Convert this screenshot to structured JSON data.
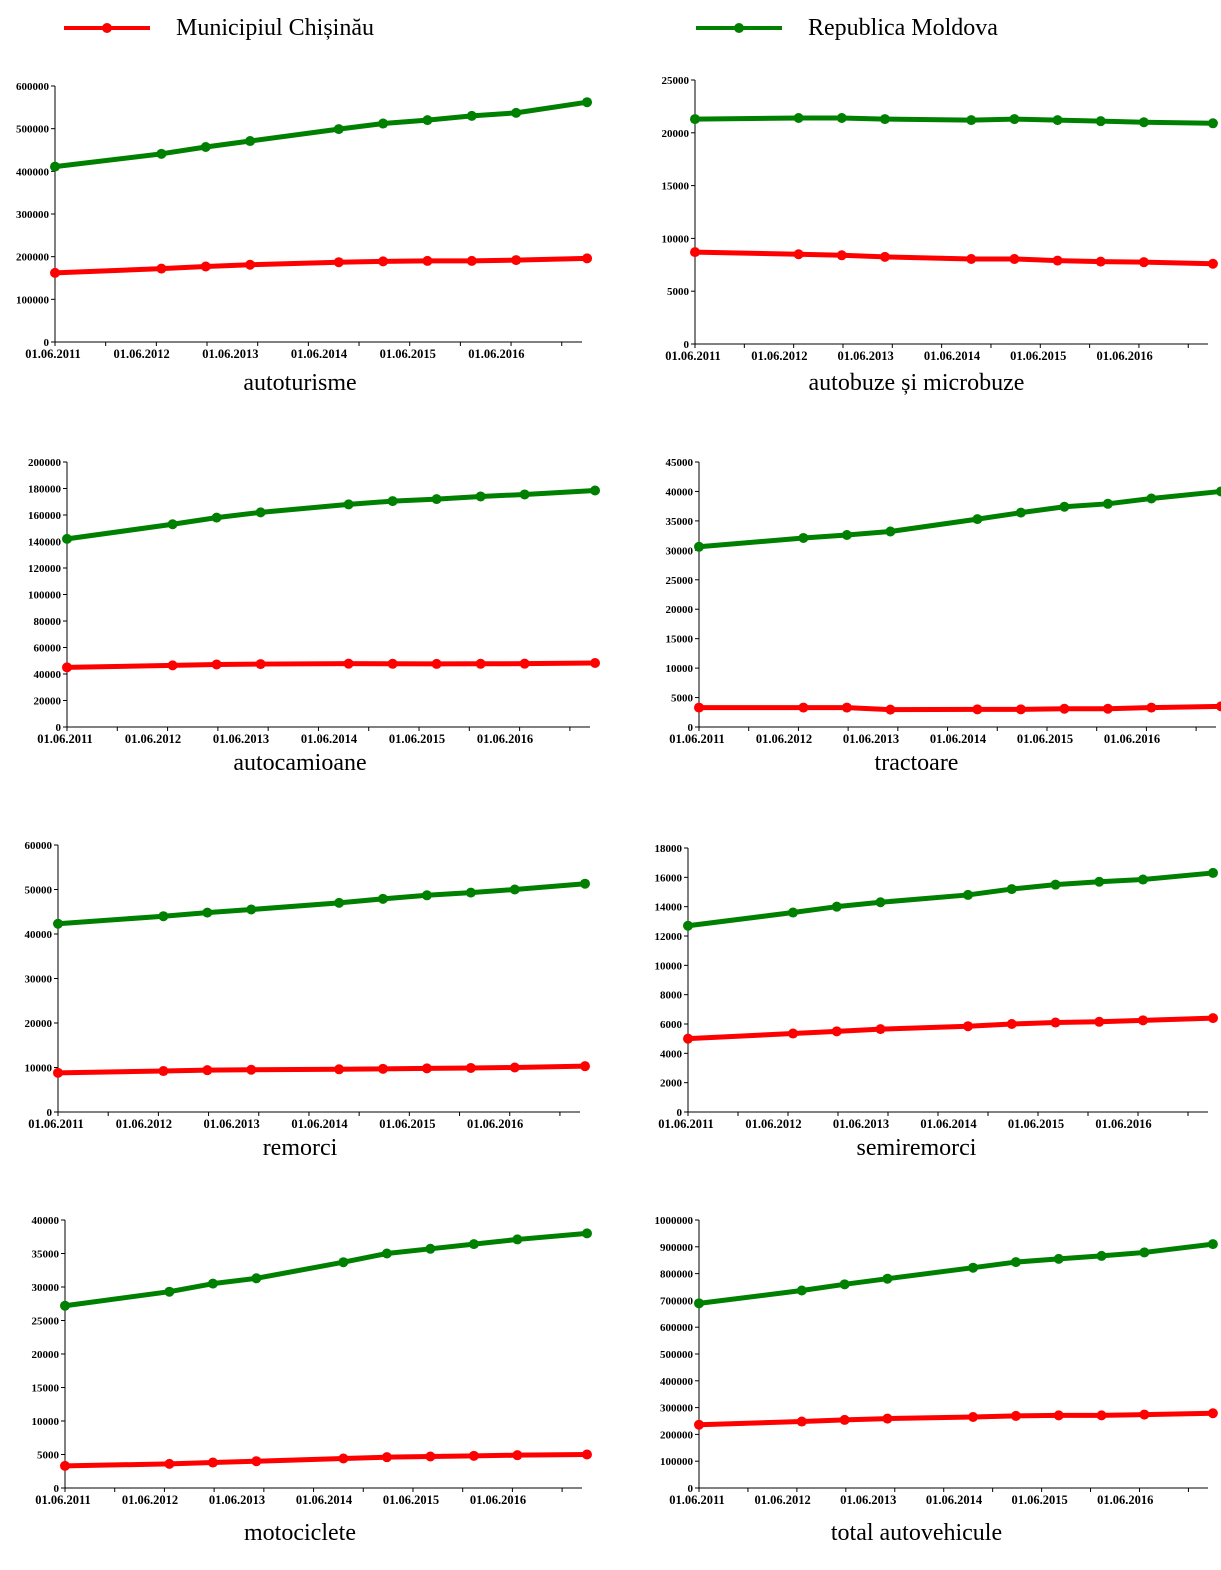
{
  "legend": {
    "items": [
      {
        "label": "Municipiul Chișinău",
        "color": "#ff0000"
      },
      {
        "label": "Republica Moldova",
        "color": "#008000"
      }
    ]
  },
  "colors": {
    "series_a": "#ff0000",
    "series_b": "#008000",
    "axis": "#000000"
  },
  "chart_data": [
    {
      "type": "line",
      "title": "autoturisme",
      "xlabel": "",
      "ylabel": "",
      "x_tick_labels": [
        "01.06.2011",
        "01.06.2012",
        "01.06.2013",
        "01.06.2014",
        "01.06.2015",
        "01.06.2016"
      ],
      "x_range": [
        0,
        10.4
      ],
      "x": [
        0,
        1.2,
        1.7,
        2.2,
        3.2,
        3.7,
        4.2,
        4.7,
        5.2,
        6
      ],
      "yticks": [
        0,
        100000,
        200000,
        300000,
        400000,
        500000,
        600000
      ],
      "ylim": [
        0,
        600000
      ],
      "series": [
        {
          "name": "Municipiul Chișinău",
          "values": [
            162000,
            172000,
            177000,
            181000,
            187000,
            189000,
            190000,
            190000,
            192000,
            196000
          ]
        },
        {
          "name": "Republica Moldova",
          "values": [
            411000,
            441000,
            457000,
            471000,
            499000,
            512000,
            520000,
            530000,
            537000,
            562000
          ]
        }
      ]
    },
    {
      "type": "line",
      "title": "autobuze și microbuze",
      "xlabel": "",
      "ylabel": "",
      "x_tick_labels": [
        "01.06.2011",
        "01.06.2012",
        "01.06.2013",
        "01.06.2014",
        "01.06.2015",
        "01.06.2016"
      ],
      "x_range": [
        0,
        10.4
      ],
      "x": [
        0,
        1.2,
        1.7,
        2.2,
        3.2,
        3.7,
        4.2,
        4.7,
        5.2,
        6
      ],
      "yticks": [
        0,
        5000,
        10000,
        15000,
        20000,
        25000
      ],
      "ylim": [
        0,
        25000
      ],
      "series": [
        {
          "name": "Municipiul Chișinău",
          "values": [
            8700,
            8500,
            8400,
            8250,
            8050,
            8050,
            7900,
            7800,
            7750,
            7600
          ]
        },
        {
          "name": "Republica Moldova",
          "values": [
            21300,
            21400,
            21400,
            21300,
            21200,
            21300,
            21200,
            21100,
            21000,
            20900
          ]
        }
      ]
    },
    {
      "type": "line",
      "title": "autocamioane",
      "xlabel": "",
      "ylabel": "",
      "x_tick_labels": [
        "01.06.2011",
        "01.06.2012",
        "01.06.2013",
        "01.06.2014",
        "01.06.2015",
        "01.06.2016"
      ],
      "x_range": [
        0,
        10.4
      ],
      "x": [
        0,
        1.2,
        1.7,
        2.2,
        3.2,
        3.7,
        4.2,
        4.7,
        5.2,
        6
      ],
      "yticks": [
        0,
        20000,
        40000,
        60000,
        80000,
        100000,
        120000,
        140000,
        160000,
        180000,
        200000
      ],
      "ylim": [
        0,
        200000
      ],
      "series": [
        {
          "name": "Municipiul Chișinău",
          "values": [
            45000,
            46500,
            47200,
            47500,
            47800,
            47700,
            47600,
            47700,
            47800,
            48300
          ]
        },
        {
          "name": "Republica Moldova",
          "values": [
            142000,
            153000,
            158000,
            162000,
            168000,
            170500,
            172000,
            174000,
            175500,
            178500
          ]
        }
      ]
    },
    {
      "type": "line",
      "title": "tractoare",
      "xlabel": "",
      "ylabel": "",
      "x_tick_labels": [
        "01.06.2011",
        "01.06.2012",
        "01.06.2013",
        "01.06.2014",
        "01.06.2015",
        "01.06.2016"
      ],
      "x_range": [
        0,
        10.4
      ],
      "x": [
        0,
        1.2,
        1.7,
        2.2,
        3.2,
        3.7,
        4.2,
        4.7,
        5.2,
        6
      ],
      "yticks": [
        0,
        5000,
        10000,
        15000,
        20000,
        25000,
        30000,
        35000,
        40000,
        45000
      ],
      "ylim": [
        0,
        45000
      ],
      "series": [
        {
          "name": "Municipiul Chișinău",
          "values": [
            3300,
            3300,
            3300,
            2950,
            3000,
            3000,
            3100,
            3100,
            3300,
            3500
          ]
        },
        {
          "name": "Republica Moldova",
          "values": [
            30600,
            32100,
            32600,
            33200,
            35300,
            36400,
            37400,
            37900,
            38800,
            40000
          ]
        }
      ]
    },
    {
      "type": "line",
      "title": "remorci",
      "xlabel": "",
      "ylabel": "",
      "x_tick_labels": [
        "01.06.2011",
        "01.06.2012",
        "01.06.2013",
        "01.06.2014",
        "01.06.2015",
        "01.06.2016"
      ],
      "x_range": [
        0,
        10.4
      ],
      "x": [
        0,
        1.2,
        1.7,
        2.2,
        3.2,
        3.7,
        4.2,
        4.7,
        5.2,
        6
      ],
      "yticks": [
        0,
        10000,
        20000,
        30000,
        40000,
        50000,
        60000
      ],
      "ylim": [
        0,
        60000
      ],
      "series": [
        {
          "name": "Municipiul Chișinău",
          "values": [
            8800,
            9200,
            9400,
            9500,
            9600,
            9700,
            9800,
            9900,
            10000,
            10300
          ]
        },
        {
          "name": "Republica Moldova",
          "values": [
            42300,
            44000,
            44800,
            45500,
            47000,
            47900,
            48700,
            49300,
            50000,
            51300
          ]
        }
      ]
    },
    {
      "type": "line",
      "title": "semiremorci",
      "xlabel": "",
      "ylabel": "",
      "x_tick_labels": [
        "01.06.2011",
        "01.06.2012",
        "01.06.2013",
        "01.06.2014",
        "01.06.2015",
        "01.06.2016"
      ],
      "x_range": [
        0,
        10.4
      ],
      "x": [
        0,
        1.2,
        1.7,
        2.2,
        3.2,
        3.7,
        4.2,
        4.7,
        5.2,
        6
      ],
      "yticks": [
        0,
        2000,
        4000,
        6000,
        8000,
        10000,
        12000,
        14000,
        16000,
        18000
      ],
      "ylim": [
        0,
        18000
      ],
      "series": [
        {
          "name": "Municipiul Chișinău",
          "values": [
            5000,
            5350,
            5500,
            5650,
            5850,
            6000,
            6100,
            6150,
            6250,
            6400
          ]
        },
        {
          "name": "Republica Moldova",
          "values": [
            12700,
            13600,
            14000,
            14300,
            14800,
            15200,
            15500,
            15700,
            15850,
            16300
          ]
        }
      ]
    },
    {
      "type": "line",
      "title": "motociclete",
      "xlabel": "",
      "ylabel": "",
      "x_tick_labels": [
        "01.06.2011",
        "01.06.2012",
        "01.06.2013",
        "01.06.2014",
        "01.06.2015",
        "01.06.2016"
      ],
      "x_range": [
        0,
        10.4
      ],
      "x": [
        0,
        1.2,
        1.7,
        2.2,
        3.2,
        3.7,
        4.2,
        4.7,
        5.2,
        6
      ],
      "yticks": [
        0,
        5000,
        10000,
        15000,
        20000,
        25000,
        30000,
        35000,
        40000
      ],
      "ylim": [
        0,
        40000
      ],
      "series": [
        {
          "name": "Municipiul Chișinău",
          "values": [
            3300,
            3600,
            3800,
            4000,
            4400,
            4600,
            4700,
            4800,
            4900,
            5000
          ]
        },
        {
          "name": "Republica Moldova",
          "values": [
            27200,
            29300,
            30500,
            31300,
            33700,
            35000,
            35700,
            36400,
            37100,
            38000
          ]
        }
      ]
    },
    {
      "type": "line",
      "title": "total autovehicule",
      "xlabel": "",
      "ylabel": "",
      "x_tick_labels": [
        "01.06.2011",
        "01.06.2012",
        "01.06.2013",
        "01.06.2014",
        "01.06.2015",
        "01.06.2016"
      ],
      "x_range": [
        0,
        10.4
      ],
      "x": [
        0,
        1.2,
        1.7,
        2.2,
        3.2,
        3.7,
        4.2,
        4.7,
        5.2,
        6
      ],
      "yticks": [
        0,
        100000,
        200000,
        300000,
        400000,
        500000,
        600000,
        700000,
        800000,
        900000,
        1000000
      ],
      "ylim": [
        0,
        1000000
      ],
      "series": [
        {
          "name": "Municipiul Chișinău",
          "values": [
            236000,
            248000,
            254000,
            259000,
            265000,
            269000,
            271000,
            271000,
            274000,
            279000
          ]
        },
        {
          "name": "Republica Moldova",
          "values": [
            689000,
            737000,
            760000,
            781000,
            822000,
            843000,
            855000,
            866000,
            879000,
            910000
          ]
        }
      ]
    }
  ]
}
